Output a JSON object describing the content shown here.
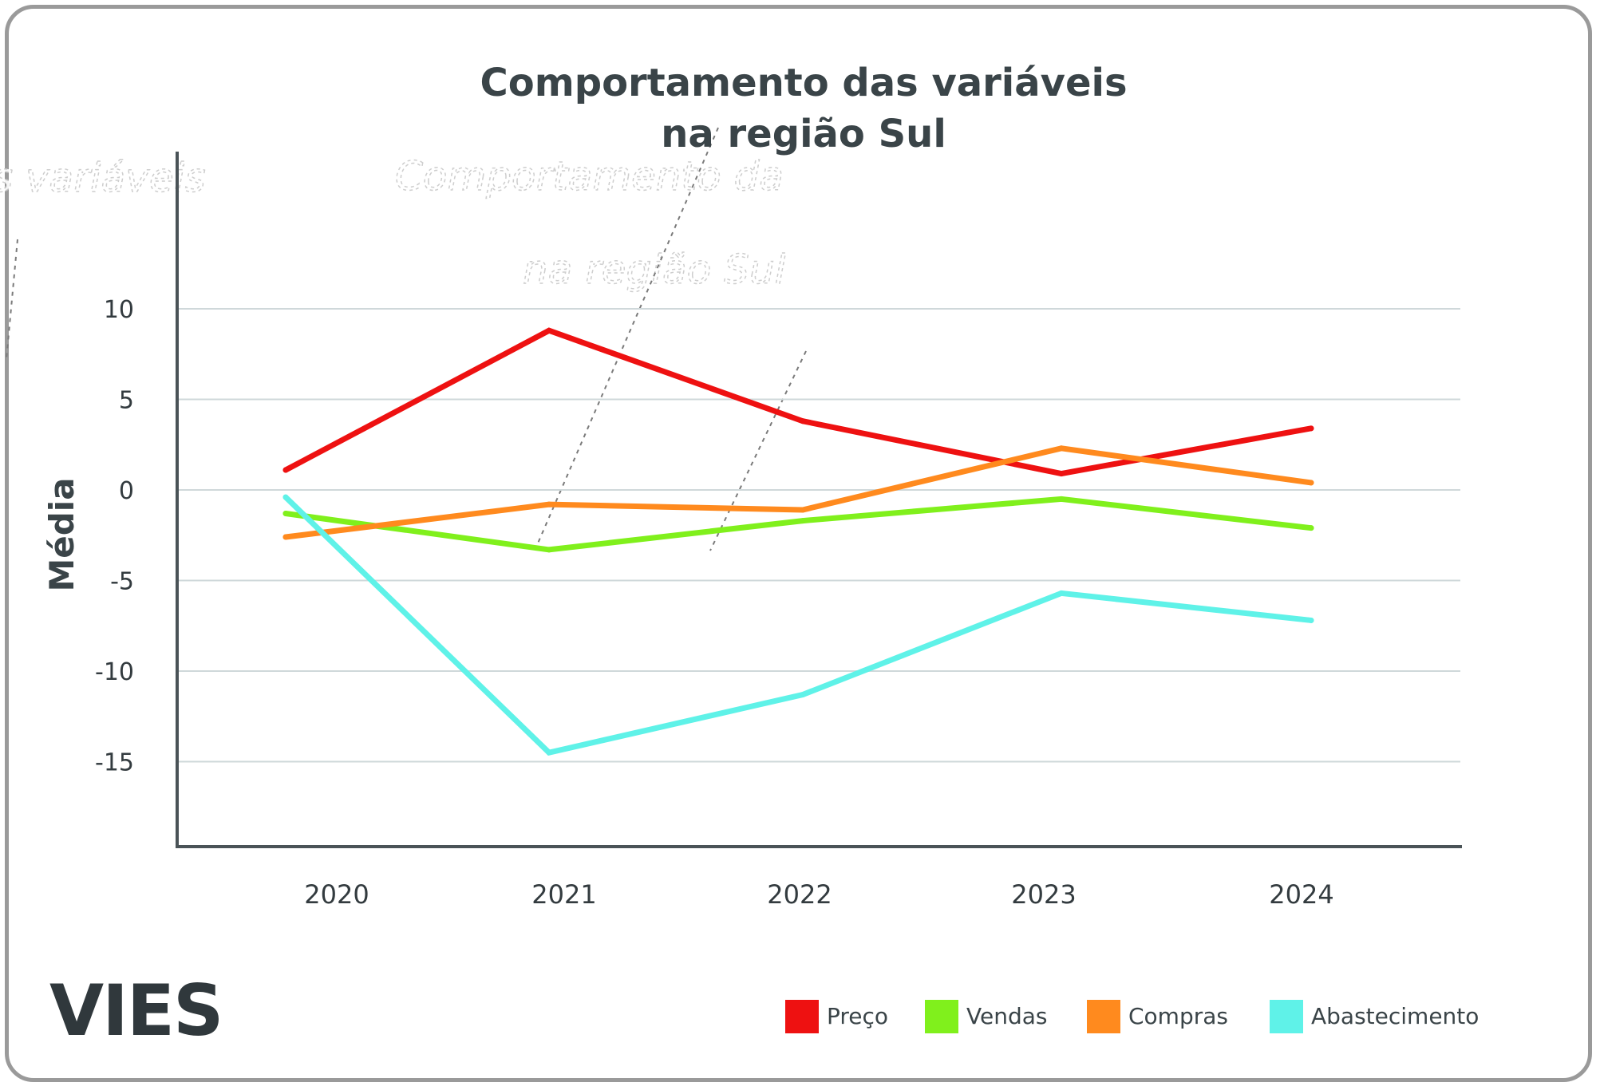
{
  "chart_data": {
    "type": "line",
    "title": [
      "Comportamento das variáveis",
      "na região Sul"
    ],
    "ylabel": "Média",
    "xlabel": "",
    "categories": [
      "2020",
      "2021",
      "2022",
      "2023",
      "2024"
    ],
    "yticks": [
      10,
      5,
      0,
      -5,
      -10,
      -15
    ],
    "ylim": [
      -19.5,
      10
    ],
    "grid": true,
    "legend_position": "bottom-right",
    "series": [
      {
        "name": "Preço",
        "color": "#ee1111",
        "values": [
          1.1,
          8.8,
          3.8,
          0.9,
          3.4
        ]
      },
      {
        "name": "Vendas",
        "color": "#80f01c",
        "values": [
          -1.3,
          -3.3,
          -1.7,
          -0.5,
          -2.1
        ]
      },
      {
        "name": "Compras",
        "color": "#ff8a1e",
        "values": [
          -2.6,
          -0.8,
          -1.1,
          2.3,
          0.4
        ]
      },
      {
        "name": "Abastecimento",
        "color": "#5ff2e8",
        "values": [
          -0.4,
          -14.5,
          -11.3,
          -5.7,
          -7.2
        ]
      }
    ]
  },
  "brand": {
    "logo": "VIES"
  },
  "ghost_artifacts": {
    "fragment_left": "s variáveis",
    "fragment_mid_1": "Comportamento da",
    "fragment_mid_2": "na região Sul"
  }
}
